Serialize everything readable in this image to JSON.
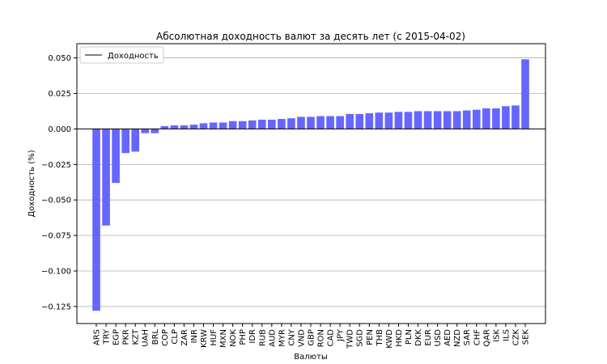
{
  "chart_data": {
    "type": "bar",
    "title": "Абсолютная доходность валют за десять лет (с 2015-04-02)",
    "xlabel": "Валюты",
    "ylabel": "Доходность (%)",
    "ylim": [
      -0.137,
      0.06
    ],
    "yticks": [
      "0.050",
      "0.025",
      "0.000",
      "−0.025",
      "−0.050",
      "−0.075",
      "−0.100",
      "−0.125"
    ],
    "ytick_values": [
      0.05,
      0.025,
      0.0,
      -0.025,
      -0.05,
      -0.075,
      -0.1,
      -0.125
    ],
    "grid": "horizontal",
    "legend": {
      "placement": "top-left",
      "entries": [
        "Доходность"
      ]
    },
    "bar_color": "#6666ff",
    "categories": [
      "ARS",
      "TRY",
      "EGP",
      "PKR",
      "KZT",
      "UAH",
      "BRL",
      "COP",
      "CLP",
      "ZAR",
      "INR",
      "KRW",
      "HUF",
      "MXN",
      "NOK",
      "PHP",
      "IDR",
      "RUB",
      "AUD",
      "MYR",
      "CNY",
      "VND",
      "GBP",
      "RON",
      "CAD",
      "JPY",
      "TWD",
      "SGD",
      "PEN",
      "THB",
      "KWD",
      "HKD",
      "PLN",
      "DKK",
      "EUR",
      "USD",
      "AED",
      "NZD",
      "SAR",
      "CHF",
      "QAR",
      "ISK",
      "ILS",
      "CZK",
      "SEK"
    ],
    "values": [
      -0.128,
      -0.068,
      -0.038,
      -0.017,
      -0.016,
      -0.003,
      -0.003,
      0.002,
      0.0025,
      0.0025,
      0.003,
      0.004,
      0.0045,
      0.0045,
      0.0055,
      0.0055,
      0.006,
      0.0065,
      0.0065,
      0.007,
      0.0075,
      0.0085,
      0.0085,
      0.009,
      0.009,
      0.009,
      0.0105,
      0.0105,
      0.011,
      0.0115,
      0.0115,
      0.012,
      0.012,
      0.0125,
      0.0125,
      0.0125,
      0.0125,
      0.0125,
      0.013,
      0.0135,
      0.0145,
      0.0145,
      0.016,
      0.0165,
      0.049
    ]
  }
}
